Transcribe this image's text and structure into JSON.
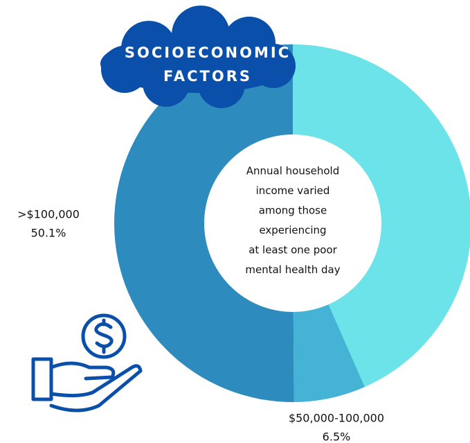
{
  "chart_data": {
    "type": "donut",
    "title": [
      "SOCIOECONOMIC",
      "FACTORS"
    ],
    "center_text": [
      "Annual household",
      "income varied",
      "among those",
      "experiencing",
      "at least one poor",
      "mental health day"
    ],
    "categories": [
      null,
      "$50,000-100,000",
      ">$100,000"
    ],
    "values": [
      43.4,
      6.5,
      50.1
    ],
    "value_labels": [
      null,
      "6.5%",
      "50.1%"
    ],
    "colors": [
      "#6be3e8",
      "#45b3d6",
      "#2e8bbd"
    ]
  }
}
